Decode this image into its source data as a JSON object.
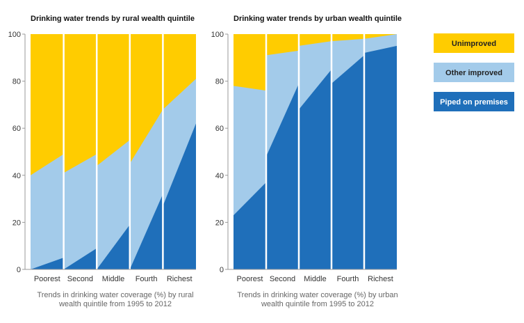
{
  "chart_data": [
    {
      "type": "area",
      "title": "Drinking water trends by rural wealth quintile",
      "caption_line1": "Trends in drinking water coverage (%) by rural",
      "caption_line2": "wealth quintile from 1995 to 2012",
      "categories": [
        "Poorest",
        "Second",
        "Middle",
        "Fourth",
        "Richest"
      ],
      "ylim": [
        0,
        100
      ],
      "yticks": [
        "0",
        "20",
        "40",
        "60",
        "80",
        "100"
      ],
      "series": [
        {
          "name": "Piped on premises",
          "start": [
            0,
            0,
            0,
            0,
            27
          ],
          "end": [
            5,
            9,
            19,
            32,
            62
          ]
        },
        {
          "name": "Other improved",
          "start": [
            40,
            41,
            44,
            45,
            68
          ],
          "end": [
            49,
            49,
            55,
            68,
            81
          ]
        },
        {
          "name": "Unimproved",
          "start": [
            100,
            100,
            100,
            100,
            100
          ],
          "end": [
            100,
            100,
            100,
            100,
            100
          ]
        }
      ]
    },
    {
      "type": "area",
      "title": "Drinking water trends by urban wealth quintile",
      "caption_line1": "Trends in drinking water coverage (%) by urban",
      "caption_line2": "wealth quintile from 1995 to 2012",
      "categories": [
        "Poorest",
        "Second",
        "Middle",
        "Fourth",
        "Richest"
      ],
      "ylim": [
        0,
        100
      ],
      "yticks": [
        "0",
        "20",
        "40",
        "60",
        "80",
        "100"
      ],
      "series": [
        {
          "name": "Piped on premises",
          "start": [
            23,
            48,
            68,
            79,
            92
          ],
          "end": [
            37,
            79,
            85,
            91,
            95
          ]
        },
        {
          "name": "Other improved",
          "start": [
            78,
            91,
            95,
            97,
            98
          ],
          "end": [
            76,
            93,
            97,
            98,
            100
          ]
        },
        {
          "name": "Unimproved",
          "start": [
            100,
            100,
            100,
            100,
            100
          ],
          "end": [
            100,
            100,
            100,
            100,
            100
          ]
        }
      ]
    }
  ],
  "legend": [
    {
      "label": "Unimproved",
      "color": "#FFCC00",
      "text_color": "#222222"
    },
    {
      "label": "Other improved",
      "color": "#A3CBEA",
      "text_color": "#222222"
    },
    {
      "label": "Piped on premises",
      "color": "#1F6FBA",
      "text_color": "#FFFFFF"
    }
  ],
  "colors": {
    "unimproved": "#FFCC00",
    "other_improved": "#A3CBEA",
    "piped": "#1F6FBA"
  }
}
